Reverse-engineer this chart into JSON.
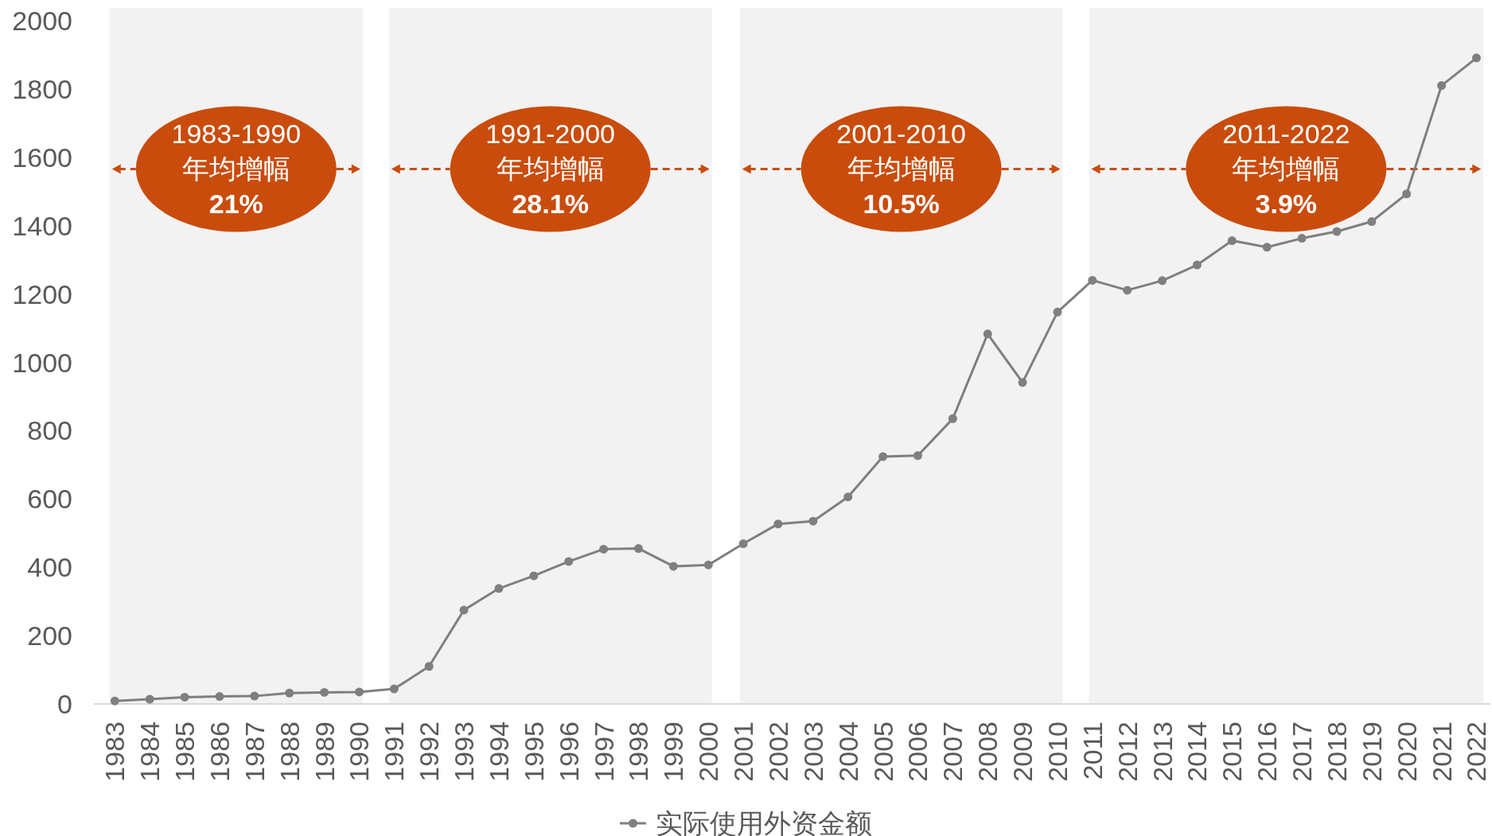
{
  "chart_data": {
    "type": "line",
    "x": [
      1983,
      1984,
      1985,
      1986,
      1987,
      1988,
      1989,
      1990,
      1991,
      1992,
      1993,
      1994,
      1995,
      1996,
      1997,
      1998,
      1999,
      2000,
      2001,
      2002,
      2003,
      2004,
      2005,
      2006,
      2007,
      2008,
      2009,
      2010,
      2011,
      2012,
      2013,
      2014,
      2015,
      2016,
      2017,
      2018,
      2019,
      2020,
      2021,
      2022
    ],
    "series": [
      {
        "name": "实际使用外资金额",
        "color": "#7f7f7f",
        "values": [
          9,
          14,
          20,
          22,
          23,
          32,
          34,
          35,
          44,
          110,
          275,
          338,
          375,
          417,
          453,
          455,
          403,
          407,
          469,
          527,
          535,
          606,
          724,
          727,
          835,
          1083,
          941,
          1147,
          1240,
          1211,
          1239,
          1285,
          1356,
          1337,
          1363,
          1383,
          1412,
          1493,
          1810,
          1891
        ]
      }
    ],
    "xlim": [
      1982.4,
      2022.4
    ],
    "xticks": [
      1983,
      1984,
      1985,
      1986,
      1987,
      1988,
      1989,
      1990,
      1991,
      1992,
      1993,
      1994,
      1995,
      1996,
      1997,
      1998,
      1999,
      2000,
      2001,
      2002,
      2003,
      2004,
      2005,
      2006,
      2007,
      2008,
      2009,
      2010,
      2011,
      2012,
      2013,
      2014,
      2015,
      2016,
      2017,
      2018,
      2019,
      2020,
      2021,
      2022
    ],
    "ylim": [
      0,
      2000
    ],
    "yticks": [
      0,
      200,
      400,
      600,
      800,
      1000,
      1200,
      1400,
      1600,
      1800,
      2000
    ],
    "bands": [
      {
        "axis": "x",
        "from": 1982.85,
        "to": 1990.1,
        "label": "1983-1990\n年均增幅\n**21%**",
        "color": "#f2f2f2"
      },
      {
        "axis": "x",
        "from": 1990.85,
        "to": 2000.1,
        "label": "1991-2000\n年均增幅\n**28.1%**",
        "color": "#f2f2f2"
      },
      {
        "axis": "x",
        "from": 2000.9,
        "to": 2010.15,
        "label": "2001-2010\n年均增幅\n**10.5%**",
        "color": "#f2f2f2"
      },
      {
        "axis": "x",
        "from": 2010.9,
        "to": 2022.2,
        "label": "2011-2022\n年均增幅\n**3.9%**",
        "color": "#f2f2f2"
      }
    ],
    "grid": false,
    "legend": "bottom",
    "marker": "circle",
    "line_style": "solid"
  }
}
